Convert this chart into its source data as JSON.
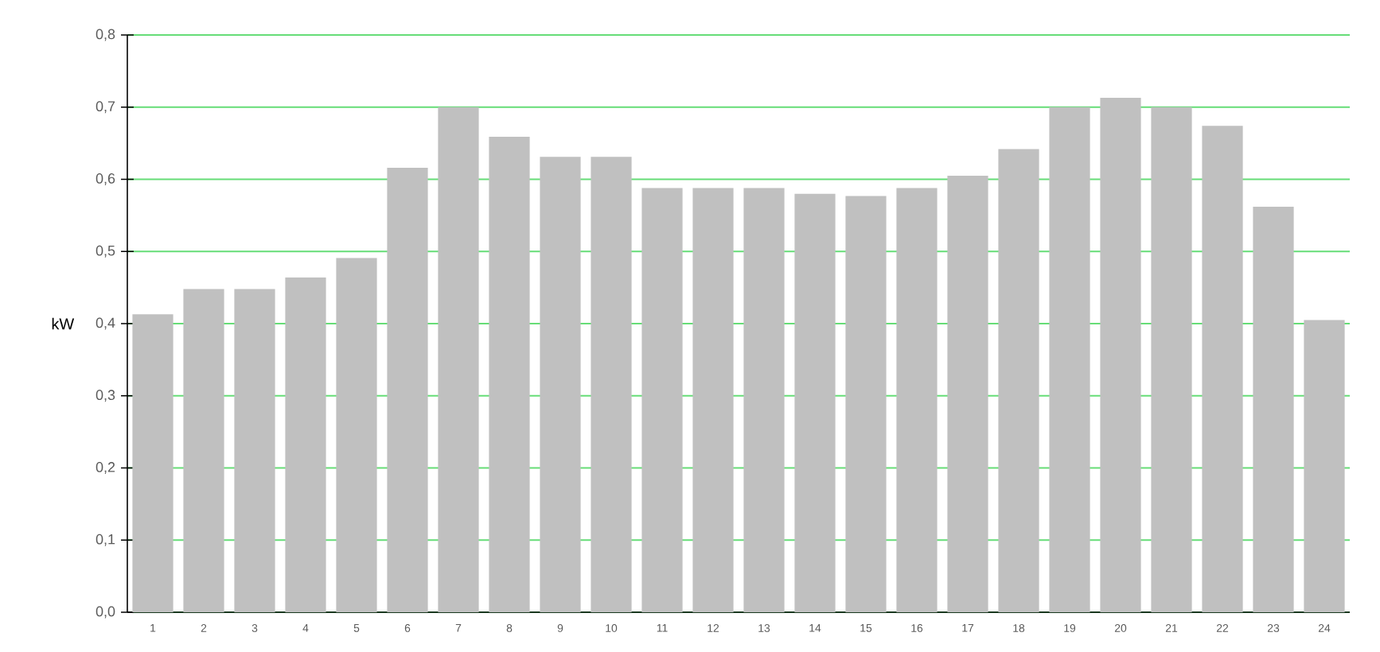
{
  "chart_data": {
    "type": "bar",
    "ylabel": "kW",
    "categories": [
      "1",
      "2",
      "3",
      "4",
      "5",
      "6",
      "7",
      "8",
      "9",
      "10",
      "11",
      "12",
      "13",
      "14",
      "15",
      "16",
      "17",
      "18",
      "19",
      "20",
      "21",
      "22",
      "23",
      "24"
    ],
    "values": [
      0.413,
      0.448,
      0.448,
      0.464,
      0.491,
      0.616,
      0.7,
      0.659,
      0.631,
      0.631,
      0.588,
      0.588,
      0.588,
      0.58,
      0.577,
      0.588,
      0.605,
      0.642,
      0.7,
      0.713,
      0.7,
      0.674,
      0.562,
      0.405
    ],
    "color": "#c0c0c0",
    "ylim": [
      0,
      0.8
    ],
    "yticks": [
      {
        "value": 0,
        "label": "0,0"
      },
      {
        "value": 0.1,
        "label": "0,1"
      },
      {
        "value": 0.2,
        "label": "0,2"
      },
      {
        "value": 0.3,
        "label": "0,3"
      },
      {
        "value": 0.4,
        "label": "0,4"
      },
      {
        "value": 0.5,
        "label": "0,5"
      },
      {
        "value": 0.6,
        "label": "0,6"
      },
      {
        "value": 0.7,
        "label": "0,7"
      },
      {
        "value": 0.8,
        "label": "0,8"
      }
    ],
    "grid": "y"
  }
}
